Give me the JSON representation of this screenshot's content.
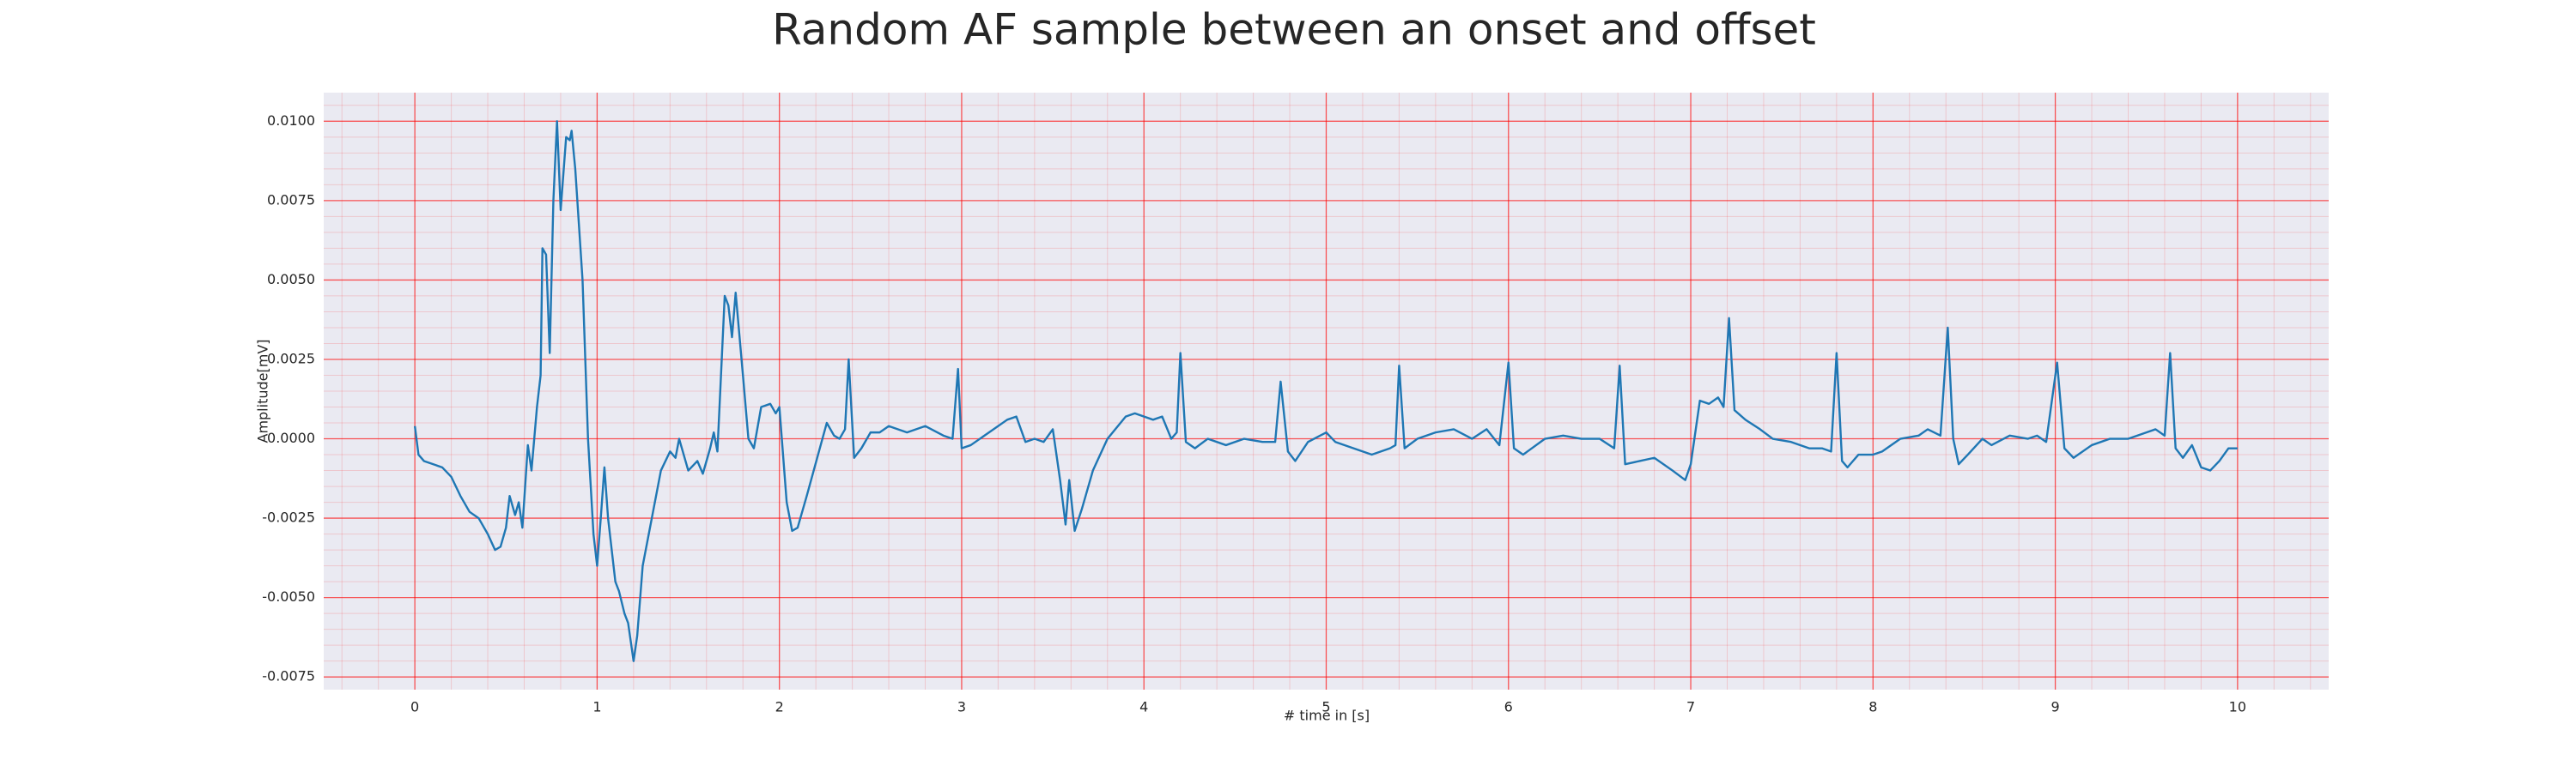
{
  "chart_data": {
    "type": "line",
    "title": "Random AF sample between an onset and offset",
    "x_label": "# time in [s]",
    "y_label": "Amplitude[mV]",
    "xlim": [
      -0.5,
      10.5
    ],
    "ylim": [
      -0.0079,
      0.0109
    ],
    "xticks": [
      0,
      1,
      2,
      3,
      4,
      5,
      6,
      7,
      8,
      9,
      10
    ],
    "yticks": [
      {
        "value": 0.01,
        "label": "0.0100"
      },
      0.0075,
      {
        "value": 0.005,
        "label": "0.0050"
      },
      0.0025,
      {
        "value": 0,
        "label": "0.0000"
      },
      -0.0025,
      {
        "value": -0.005,
        "label": "-0.0050"
      },
      -0.0075
    ],
    "grid": true,
    "minor_grid": true,
    "grid_color": "#ff0000",
    "background": "#eaeaf2",
    "series": [
      {
        "color": "#1f77b4",
        "x": [
          0,
          0.02,
          0.05,
          0.1,
          0.15,
          0.2,
          0.25,
          0.3,
          0.35,
          0.4,
          0.44,
          0.47,
          0.5,
          0.52,
          0.55,
          0.57,
          0.59,
          0.62,
          0.64,
          0.67,
          0.69,
          0.7,
          0.72,
          0.74,
          0.76,
          0.78,
          0.8,
          0.83,
          0.85,
          0.86,
          0.88,
          0.92,
          0.95,
          0.98,
          1.0,
          1.02,
          1.04,
          1.06,
          1.1,
          1.12,
          1.15,
          1.17,
          1.2,
          1.22,
          1.25,
          1.3,
          1.35,
          1.4,
          1.43,
          1.45,
          1.5,
          1.55,
          1.58,
          1.62,
          1.64,
          1.66,
          1.7,
          1.72,
          1.74,
          1.76,
          1.8,
          1.83,
          1.86,
          1.9,
          1.95,
          1.98,
          2.0,
          2.04,
          2.07,
          2.1,
          2.15,
          2.26,
          2.3,
          2.33,
          2.36,
          2.38,
          2.41,
          2.45,
          2.5,
          2.55,
          2.6,
          2.7,
          2.8,
          2.9,
          2.95,
          2.98,
          3.0,
          3.05,
          3.15,
          3.25,
          3.3,
          3.35,
          3.4,
          3.45,
          3.5,
          3.54,
          3.57,
          3.59,
          3.62,
          3.66,
          3.72,
          3.8,
          3.9,
          3.95,
          4.05,
          4.1,
          4.15,
          4.18,
          4.2,
          4.23,
          4.28,
          4.35,
          4.45,
          4.55,
          4.65,
          4.72,
          4.75,
          4.79,
          4.83,
          4.9,
          5.0,
          5.05,
          5.15,
          5.25,
          5.35,
          5.38,
          5.4,
          5.43,
          5.5,
          5.6,
          5.7,
          5.8,
          5.88,
          5.95,
          6.0,
          6.03,
          6.08,
          6.2,
          6.3,
          6.4,
          6.5,
          6.58,
          6.61,
          6.64,
          6.72,
          6.8,
          6.9,
          6.97,
          7.0,
          7.05,
          7.1,
          7.15,
          7.18,
          7.21,
          7.24,
          7.3,
          7.38,
          7.45,
          7.55,
          7.65,
          7.72,
          7.77,
          7.8,
          7.83,
          7.86,
          7.92,
          8.0,
          8.05,
          8.15,
          8.25,
          8.3,
          8.37,
          8.41,
          8.44,
          8.47,
          8.52,
          8.6,
          8.65,
          8.75,
          8.85,
          8.9,
          8.95,
          9.01,
          9.05,
          9.1,
          9.2,
          9.3,
          9.4,
          9.5,
          9.55,
          9.6,
          9.63,
          9.66,
          9.7,
          9.75,
          9.8,
          9.85,
          9.9,
          9.95,
          10.0
        ],
        "values": [
          0.0004,
          -0.0005,
          -0.0007,
          -0.0008,
          -0.0009,
          -0.0012,
          -0.0018,
          -0.0023,
          -0.0025,
          -0.003,
          -0.0035,
          -0.0034,
          -0.0028,
          -0.0018,
          -0.0024,
          -0.002,
          -0.0028,
          -0.0002,
          -0.001,
          0.001,
          0.002,
          0.006,
          0.0058,
          0.0027,
          0.0075,
          0.01,
          0.0072,
          0.0095,
          0.0094,
          0.0097,
          0.0085,
          0.005,
          0.0,
          -0.003,
          -0.004,
          -0.0025,
          -0.0009,
          -0.0025,
          -0.0045,
          -0.0048,
          -0.0055,
          -0.0058,
          -0.007,
          -0.0062,
          -0.004,
          -0.0025,
          -0.001,
          -0.0004,
          -0.0006,
          0.0,
          -0.001,
          -0.0007,
          -0.0011,
          -0.0003,
          0.0002,
          -0.0004,
          0.0045,
          0.0042,
          0.0032,
          0.0046,
          0.002,
          0.0,
          -0.0003,
          0.001,
          0.0011,
          0.0008,
          0.001,
          -0.002,
          -0.0029,
          -0.0028,
          -0.0018,
          0.0005,
          0.0001,
          0.0,
          0.0003,
          0.0025,
          -0.0006,
          -0.0003,
          0.0002,
          0.0002,
          0.0004,
          0.0002,
          0.0004,
          0.0001,
          0.0,
          0.0022,
          -0.0003,
          -0.0002,
          0.0002,
          0.0006,
          0.0007,
          -0.0001,
          0.0,
          -0.0001,
          0.0003,
          -0.0013,
          -0.0027,
          -0.0013,
          -0.0029,
          -0.0022,
          -0.001,
          0.0,
          0.0007,
          0.0008,
          0.0006,
          0.0007,
          0.0,
          0.0002,
          0.0027,
          -0.0001,
          -0.0003,
          0.0,
          -0.0002,
          0.0,
          -0.0001,
          -0.0001,
          0.0018,
          -0.0004,
          -0.0007,
          -0.0001,
          0.0002,
          -0.0001,
          -0.0003,
          -0.0005,
          -0.0003,
          -0.0002,
          0.0023,
          -0.0003,
          0.0,
          0.0002,
          0.0003,
          0.0,
          0.0003,
          -0.0002,
          0.0024,
          -0.0003,
          -0.0005,
          0.0,
          0.0001,
          0.0,
          0.0,
          -0.0003,
          0.0023,
          -0.0008,
          -0.0007,
          -0.0006,
          -0.001,
          -0.0013,
          -0.0008,
          0.0012,
          0.0011,
          0.0013,
          0.001,
          0.0038,
          0.0009,
          0.0006,
          0.0003,
          0.0,
          -0.0001,
          -0.0003,
          -0.0003,
          -0.0004,
          0.0027,
          -0.0007,
          -0.0009,
          -0.0005,
          -0.0005,
          -0.0004,
          0.0,
          0.0001,
          0.0003,
          0.0001,
          0.0035,
          0.0,
          -0.0008,
          -0.0005,
          0.0,
          -0.0002,
          0.0001,
          0.0,
          0.0001,
          -0.0001,
          0.0024,
          -0.0003,
          -0.0006,
          -0.0002,
          0.0,
          0.0,
          0.0002,
          0.0003,
          0.0001,
          0.0027,
          -0.0003,
          -0.0006,
          -0.0002,
          -0.0009,
          -0.001,
          -0.0007,
          -0.0003,
          -0.0003
        ]
      }
    ]
  }
}
